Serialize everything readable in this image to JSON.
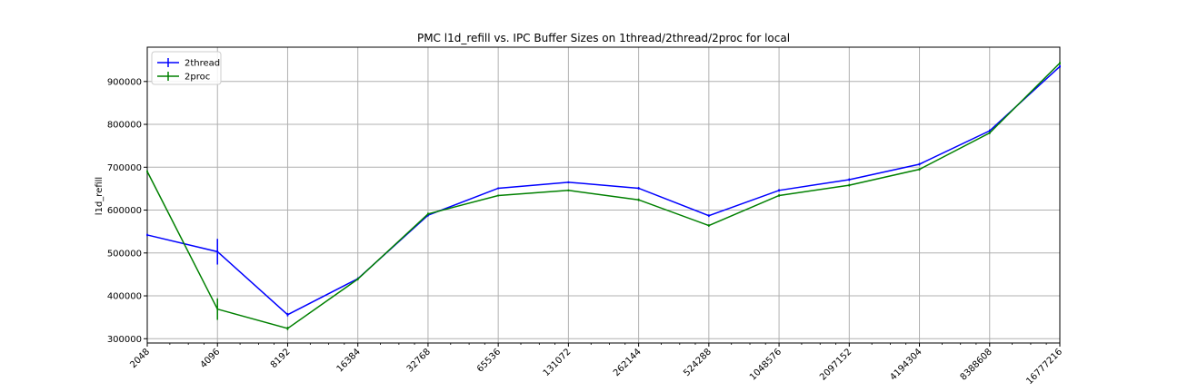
{
  "chart_data": {
    "type": "line",
    "title": "PMC l1d_refill vs. IPC Buffer Sizes on 1thread/2thread/2proc for local",
    "xlabel": "",
    "ylabel": "l1d_refill",
    "x_scale": "log2",
    "x": [
      "2048",
      "4096",
      "8192",
      "16384",
      "32768",
      "65536",
      "131072",
      "262144",
      "524288",
      "1048576",
      "2097152",
      "4194304",
      "8388608",
      "16777216"
    ],
    "xlim": [
      2048,
      16777216
    ],
    "ylim": [
      290000,
      980000
    ],
    "y_ticks": [
      "300000",
      "400000",
      "500000",
      "600000",
      "700000",
      "800000",
      "900000"
    ],
    "grid": true,
    "legend_position": "top-left",
    "series": [
      {
        "name": "2thread",
        "color": "#0000ff",
        "values": [
          542000,
          503000,
          356000,
          440000,
          588000,
          651000,
          665000,
          651000,
          587000,
          646000,
          671000,
          707000,
          785000,
          935000
        ],
        "errors": [
          3000,
          30000,
          4000,
          3000,
          3000,
          2000,
          2000,
          3000,
          3000,
          3000,
          3000,
          3000,
          3000,
          3000
        ]
      },
      {
        "name": "2proc",
        "color": "#008000",
        "values": [
          690000,
          369000,
          324000,
          439000,
          591000,
          634000,
          646000,
          624000,
          564000,
          634000,
          658000,
          695000,
          780000,
          943000
        ],
        "errors": [
          3000,
          25000,
          4000,
          3000,
          3000,
          2000,
          2000,
          3000,
          3000,
          3000,
          3000,
          3000,
          3000,
          3000
        ]
      }
    ]
  }
}
